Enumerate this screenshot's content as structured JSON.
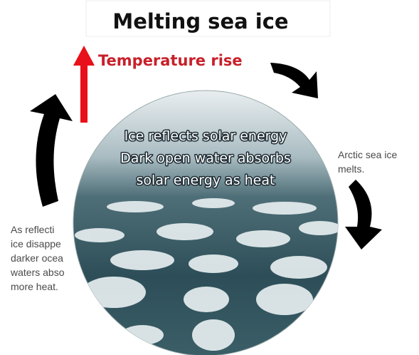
{
  "title": "Melting sea ice",
  "arrow_label": "Temperature rise",
  "circle_text": [
    "Ice reflects solar energy",
    "Dark open water absorbs",
    "solar energy as heat"
  ],
  "right_text": [
    "Arctic sea ice",
    "melts."
  ],
  "left_text": [
    "As reflecti",
    "ice disappe",
    "darker ocea",
    "waters abso",
    "more heat."
  ]
}
